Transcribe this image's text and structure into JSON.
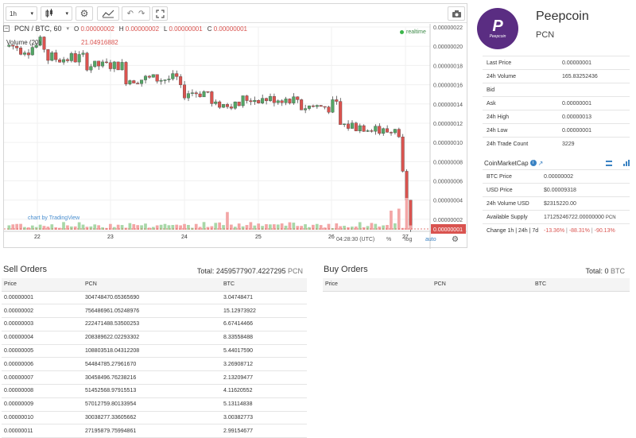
{
  "toolbar": {
    "interval": "1h",
    "icons": [
      "candles-icon",
      "gear-icon",
      "indicators-icon",
      "undo-icon",
      "redo-icon",
      "fullscreen-icon",
      "camera-icon"
    ]
  },
  "chart": {
    "pair": "PCN / BTC, 60",
    "o_label": "O",
    "o_value": "0.00000002",
    "h_label": "H",
    "h_value": "0.00000002",
    "l_label": "L",
    "l_value": "0.00000001",
    "c_label": "C",
    "c_value": "0.00000001",
    "volume_label": "Volume (20)",
    "volume_value": "21.04916882",
    "realtime": "realtime",
    "watermark": "chart by TradingView",
    "current_price_tag": "0.00000001",
    "time": "04:28:30 (UTC)",
    "percent": "%",
    "log": "log",
    "auto": "auto",
    "colors": {
      "up": "#53a665",
      "down": "#d9534f",
      "vol_up": "#a8d8a8",
      "vol_down": "#f3a6a6"
    }
  },
  "chart_data": {
    "type": "candlestick",
    "x_ticks": [
      "22",
      "23",
      "24",
      "25",
      "26",
      "27"
    ],
    "y_ticks": [
      "0.00000022",
      "0.00000020",
      "0.00000018",
      "0.00000016",
      "0.00000014",
      "0.00000012",
      "0.00000010",
      "0.00000008",
      "0.00000006",
      "0.00000004",
      "0.00000002"
    ],
    "ylim": [
      1e-08,
      2.2e-07
    ],
    "grid": true
  },
  "coin": {
    "logo_text": "Peepcoin",
    "name": "Peepcoin",
    "symbol": "PCN"
  },
  "stats": [
    {
      "label": "Last Price",
      "value": "0.00000001"
    },
    {
      "label": "24h Volume",
      "value": "165.83252436"
    },
    {
      "label": "Bid",
      "value": ""
    },
    {
      "label": "Ask",
      "value": "0.00000001"
    },
    {
      "label": "24h High",
      "value": "0.00000013"
    },
    {
      "label": "24h Low",
      "value": "0.00000001"
    },
    {
      "label": "24h Trade Count",
      "value": "3229"
    }
  ],
  "cmc": {
    "title": "CoinMarketCap",
    "btc_price_label": "BTC Price",
    "btc_price": "0.00000002",
    "usd_price_label": "USD Price",
    "usd_price": "$0.00009318",
    "vol_usd_label": "24h Volume USD",
    "vol_usd": "$2315220.00",
    "supply_label": "Available Supply",
    "supply": "17125246722.00000000",
    "supply_unit": "PCN",
    "change_label": "Change 1h | 24h | 7d",
    "change_1h": "-13.36%",
    "change_24h": "-88.31%",
    "change_7d": "-90.13%",
    "sep": "|"
  },
  "sell": {
    "title": "Sell Orders",
    "total_label": "Total: 2459577907.4227295",
    "total_unit": "PCN",
    "headers": [
      "Price",
      "PCN",
      "BTC"
    ],
    "rows": [
      [
        "0.00000001",
        "304748470.65365690",
        "3.04748471"
      ],
      [
        "0.00000002",
        "756486961.05248976",
        "15.12973922"
      ],
      [
        "0.00000003",
        "222471488.53500253",
        "6.67414466"
      ],
      [
        "0.00000004",
        "208389622.02293302",
        "8.33558488"
      ],
      [
        "0.00000005",
        "108803518.04312208",
        "5.44017590"
      ],
      [
        "0.00000006",
        "54484785.27961670",
        "3.26908712"
      ],
      [
        "0.00000007",
        "30458496.76238216",
        "2.13209477"
      ],
      [
        "0.00000008",
        "51452568.97915513",
        "4.11620552"
      ],
      [
        "0.00000009",
        "57012759.80133954",
        "5.13114838"
      ],
      [
        "0.00000010",
        "30038277.33605662",
        "3.00382773"
      ],
      [
        "0.00000011",
        "27195879.75994861",
        "2.99154677"
      ]
    ]
  },
  "buy": {
    "title": "Buy Orders",
    "total_label": "Total: 0",
    "total_unit": "BTC",
    "headers": [
      "Price",
      "PCN",
      "BTC"
    ]
  }
}
